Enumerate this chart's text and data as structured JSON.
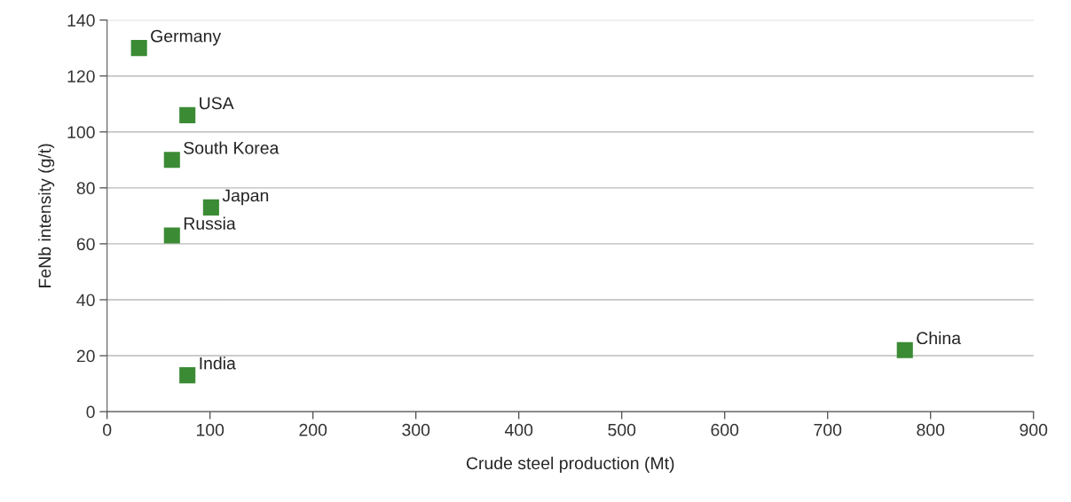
{
  "chart_data": {
    "type": "scatter",
    "xlabel": "Crude steel production (Mt)",
    "ylabel": "FeNb intensity (g/t)",
    "series": [
      {
        "color": "#3b8b35",
        "x": [
          31,
          78,
          63,
          101,
          63,
          78,
          775
        ],
        "values": [
          130,
          106,
          90,
          73,
          63,
          13,
          22
        ]
      }
    ],
    "annotations": [
      {
        "text": "Germany",
        "x": 31,
        "y": 130
      },
      {
        "text": "USA",
        "x": 78,
        "y": 106
      },
      {
        "text": "South Korea",
        "x": 63,
        "y": 90
      },
      {
        "text": "Japan",
        "x": 101,
        "y": 73
      },
      {
        "text": "Russia",
        "x": 63,
        "y": 63
      },
      {
        "text": "India",
        "x": 78,
        "y": 13
      },
      {
        "text": "China",
        "x": 775,
        "y": 22
      }
    ],
    "xlim": [
      0,
      900
    ],
    "xticks": [
      0,
      100,
      200,
      300,
      400,
      500,
      600,
      700,
      800,
      900
    ],
    "ylim": [
      0,
      140
    ],
    "yticks": [
      0,
      20,
      40,
      60,
      80,
      100,
      120,
      140
    ],
    "grid": "y",
    "marker": "square",
    "legend": false
  }
}
